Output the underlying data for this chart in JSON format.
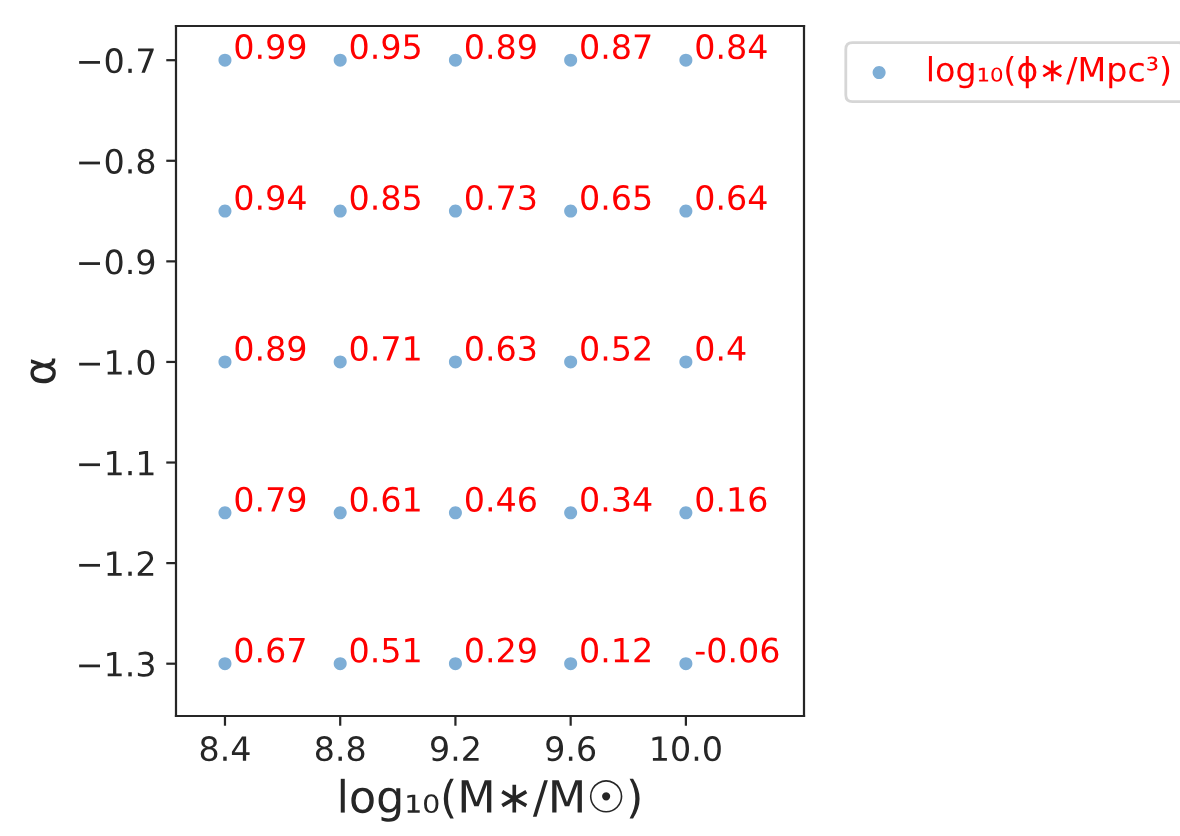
{
  "chart_data": {
    "type": "scatter",
    "xlabel": "log₁₀(M∗/M☉)",
    "ylabel": "α",
    "x": [
      8.4,
      8.8,
      9.2,
      9.6,
      10.0,
      8.4,
      8.8,
      9.2,
      9.6,
      10.0,
      8.4,
      8.8,
      9.2,
      9.6,
      10.0,
      8.4,
      8.8,
      9.2,
      9.6,
      10.0,
      8.4,
      8.8,
      9.2,
      9.6,
      10.0
    ],
    "series": [
      {
        "name": "log₁₀(ϕ∗/Mpc³)",
        "color": "#7eaed6",
        "values": [
          -0.7,
          -0.7,
          -0.7,
          -0.7,
          -0.7,
          -0.85,
          -0.85,
          -0.85,
          -0.85,
          -0.85,
          -1.0,
          -1.0,
          -1.0,
          -1.0,
          -1.0,
          -1.15,
          -1.15,
          -1.15,
          -1.15,
          -1.15,
          -1.3,
          -1.3,
          -1.3,
          -1.3,
          -1.3
        ]
      }
    ],
    "annotations": [
      {
        "text": "0.99",
        "x": 8.4,
        "y": -0.7
      },
      {
        "text": "0.95",
        "x": 8.8,
        "y": -0.7
      },
      {
        "text": "0.89",
        "x": 9.2,
        "y": -0.7
      },
      {
        "text": "0.87",
        "x": 9.6,
        "y": -0.7
      },
      {
        "text": "0.84",
        "x": 10.0,
        "y": -0.7
      },
      {
        "text": "0.94",
        "x": 8.4,
        "y": -0.85
      },
      {
        "text": "0.85",
        "x": 8.8,
        "y": -0.85
      },
      {
        "text": "0.73",
        "x": 9.2,
        "y": -0.85
      },
      {
        "text": "0.65",
        "x": 9.6,
        "y": -0.85
      },
      {
        "text": "0.64",
        "x": 10.0,
        "y": -0.85
      },
      {
        "text": "0.89",
        "x": 8.4,
        "y": -1.0
      },
      {
        "text": "0.71",
        "x": 8.8,
        "y": -1.0
      },
      {
        "text": "0.63",
        "x": 9.2,
        "y": -1.0
      },
      {
        "text": "0.52",
        "x": 9.6,
        "y": -1.0
      },
      {
        "text": "0.4",
        "x": 10.0,
        "y": -1.0
      },
      {
        "text": "0.79",
        "x": 8.4,
        "y": -1.15
      },
      {
        "text": "0.61",
        "x": 8.8,
        "y": -1.15
      },
      {
        "text": "0.46",
        "x": 9.2,
        "y": -1.15
      },
      {
        "text": "0.34",
        "x": 9.6,
        "y": -1.15
      },
      {
        "text": "0.16",
        "x": 10.0,
        "y": -1.15
      },
      {
        "text": "0.67",
        "x": 8.4,
        "y": -1.3
      },
      {
        "text": "0.51",
        "x": 8.8,
        "y": -1.3
      },
      {
        "text": "0.29",
        "x": 9.2,
        "y": -1.3
      },
      {
        "text": "0.12",
        "x": 9.6,
        "y": -1.3
      },
      {
        "text": "-0.06",
        "x": 10.0,
        "y": -1.3
      }
    ],
    "xlim": [
      8.23,
      10.41
    ],
    "ylim": [
      -1.352,
      -0.666
    ],
    "xticks": [
      {
        "value": 8.4,
        "label": "8.4"
      },
      {
        "value": 8.8,
        "label": "8.8"
      },
      {
        "value": 9.2,
        "label": "9.2"
      },
      {
        "value": 9.6,
        "label": "9.6"
      },
      {
        "value": 10.0,
        "label": "10.0"
      }
    ],
    "yticks": [
      {
        "value": -1.3,
        "label": "−1.3"
      },
      {
        "value": -1.2,
        "label": "−1.2"
      },
      {
        "value": -1.1,
        "label": "−1.1"
      },
      {
        "value": -1.0,
        "label": "−1.0"
      },
      {
        "value": -0.9,
        "label": "−0.9"
      },
      {
        "value": -0.8,
        "label": "−0.8"
      },
      {
        "value": -0.7,
        "label": "−0.7"
      }
    ],
    "grid": false,
    "legend": "top right",
    "marker": "circle"
  }
}
